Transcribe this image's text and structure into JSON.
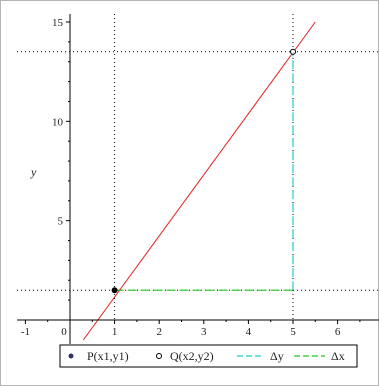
{
  "chart_data": {
    "type": "line",
    "title": "",
    "xlabel": "",
    "ylabel": "y",
    "xlim": [
      -1.1,
      7.0
    ],
    "ylim": [
      0,
      15
    ],
    "x_ticks": [
      -1,
      0,
      1,
      2,
      3,
      4,
      5,
      6
    ],
    "y_ticks": [
      5,
      10,
      15
    ],
    "grid": false,
    "legend_position": "bottom",
    "colors": {
      "line": "#e02020",
      "dy": "#22cccc",
      "dx": "#22cc22",
      "guides": "#000000",
      "point_p": "#000000",
      "point_q": "#000000"
    },
    "line": {
      "name": "",
      "x": [
        0.3,
        5.5
      ],
      "y": [
        -1.0,
        15.0
      ]
    },
    "points": {
      "P": {
        "label": "P(x1,y1)",
        "x": 1,
        "y": 1.5,
        "marker": "filled-circle"
      },
      "Q": {
        "label": "Q(x2,y2)",
        "x": 5,
        "y": 13.5,
        "marker": "open-circle"
      }
    },
    "series": [
      {
        "name": "P(x1,y1)",
        "style": "filled-circle"
      },
      {
        "name": "Q(x2,y2)",
        "style": "open-circle"
      },
      {
        "name": "Δy",
        "style": "dashed"
      },
      {
        "name": "Δx",
        "style": "dashed"
      }
    ]
  }
}
